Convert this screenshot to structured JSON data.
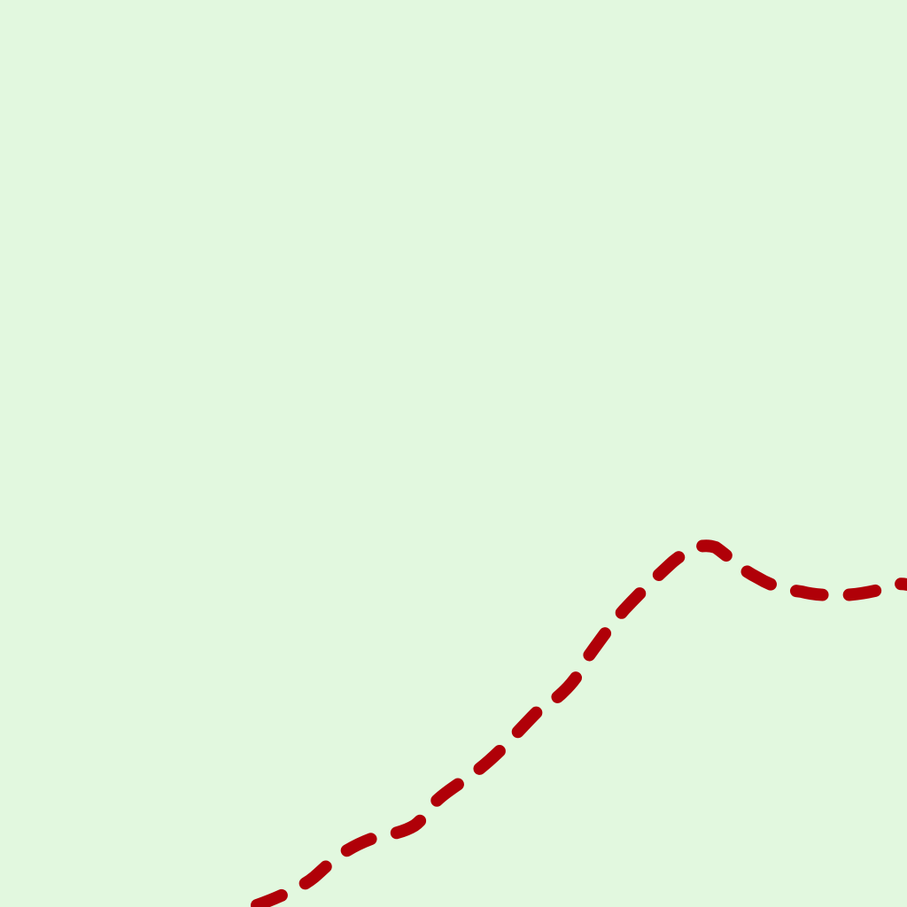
{
  "map": {
    "land_color": "#e2f8df",
    "boundary_color": "#b00008",
    "boundary_style": "dashed"
  }
}
